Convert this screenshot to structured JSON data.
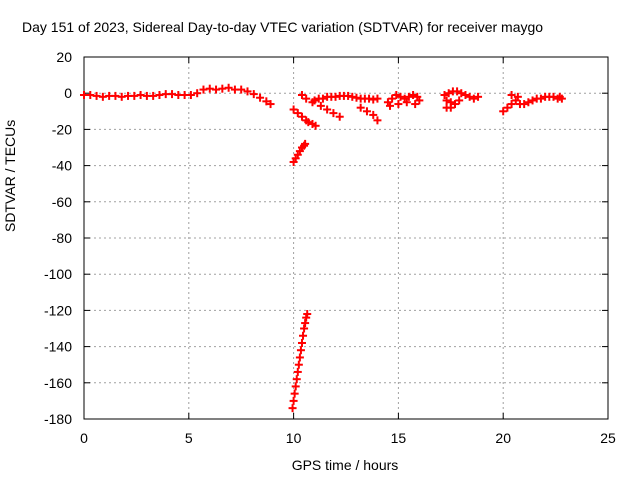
{
  "chart_data": {
    "type": "scatter",
    "title": "Day 151 of 2023, Sidereal Day-to-day VTEC variation (SDTVAR) for receiver maygo",
    "xlabel": "GPS time / hours",
    "ylabel": "SDTVAR / TECUs",
    "xlim": [
      0,
      25
    ],
    "ylim": [
      -180,
      20
    ],
    "xticks": [
      "0",
      "5",
      "10",
      "15",
      "20",
      "25"
    ],
    "yticks": [
      "20",
      "0",
      "-20",
      "-40",
      "-60",
      "-80",
      "-100",
      "-120",
      "-140",
      "-160",
      "-180"
    ],
    "grid": true,
    "marker": "plus",
    "color": "#ff0000",
    "series": [
      {
        "x": [
          0.0,
          0.3,
          0.6,
          0.9,
          1.2,
          1.5,
          1.8,
          2.1,
          2.4,
          2.7,
          3.0,
          3.3,
          3.6,
          3.9,
          4.2,
          4.5,
          4.8,
          5.1,
          5.4,
          5.7,
          6.0,
          6.3,
          6.6,
          6.9,
          7.2,
          7.5,
          7.8,
          8.1,
          8.4,
          8.7,
          8.9,
          10.0,
          10.2,
          10.4,
          10.6,
          10.7,
          10.9,
          11.05,
          10.0,
          10.1,
          10.2,
          10.3,
          10.4,
          10.5,
          10.55,
          9.95,
          10.0,
          10.05,
          10.1,
          10.15,
          10.2,
          10.25,
          10.3,
          10.35,
          10.4,
          10.45,
          10.5,
          10.55,
          10.6,
          10.65,
          10.4,
          10.6,
          10.9,
          11.0,
          11.2,
          11.4,
          11.6,
          11.8,
          12.0,
          12.2,
          12.4,
          12.6,
          12.8,
          13.0,
          13.2,
          13.4,
          13.6,
          13.8,
          14.0,
          11.3,
          11.6,
          11.9,
          12.2,
          13.2,
          13.5,
          13.8,
          14.0,
          14.5,
          14.7,
          14.9,
          15.1,
          15.3,
          15.5,
          15.7,
          15.9,
          16.0,
          14.6,
          15.0,
          15.4,
          15.8,
          17.2,
          17.4,
          17.6,
          17.8,
          18.0,
          18.2,
          18.4,
          18.6,
          18.8,
          17.3,
          17.5,
          17.7,
          17.9,
          17.3,
          17.5,
          20.0,
          20.2,
          20.4,
          20.6,
          20.8,
          21.0,
          21.2,
          21.4,
          21.6,
          21.8,
          22.0,
          22.2,
          22.4,
          20.4,
          20.7,
          22.6,
          22.7,
          22.8
        ],
        "y": [
          -1,
          -1,
          -1.5,
          -2,
          -1.5,
          -1.5,
          -2,
          -1.5,
          -1.5,
          -1,
          -1.5,
          -1.5,
          -1,
          -0.5,
          -0.5,
          -1,
          -1,
          -1,
          0,
          2,
          2.5,
          2,
          2.5,
          3,
          2,
          2,
          1,
          -0.5,
          -2.5,
          -4.5,
          -6,
          -9,
          -11,
          -13,
          -15,
          -16,
          -17,
          -18,
          -38,
          -36,
          -34,
          -32,
          -30,
          -29,
          -28,
          -174,
          -170,
          -166,
          -162,
          -158,
          -154,
          -150,
          -146,
          -142,
          -138,
          -134,
          -130,
          -127,
          -124,
          -122,
          -1,
          -3,
          -5,
          -4,
          -3,
          -3,
          -2,
          -2,
          -2,
          -1.5,
          -1.5,
          -1.5,
          -2,
          -2.5,
          -3,
          -3,
          -3,
          -3.5,
          -3,
          -7,
          -9,
          -11,
          -13,
          -8,
          -10,
          -12,
          -15,
          -5,
          -3,
          -1,
          -2,
          -3,
          -2,
          -1,
          -2,
          -4,
          -7,
          -6,
          -5,
          -6,
          -1,
          0,
          1,
          1,
          0,
          -1,
          -2,
          -3,
          -2,
          -4,
          -5,
          -6,
          -4,
          -8,
          -8,
          -10,
          -8,
          -6,
          -4,
          -6,
          -6,
          -5,
          -4,
          -3,
          -3,
          -2,
          -2,
          -2,
          -1,
          -2,
          -3,
          -2,
          -3
        ]
      }
    ]
  }
}
